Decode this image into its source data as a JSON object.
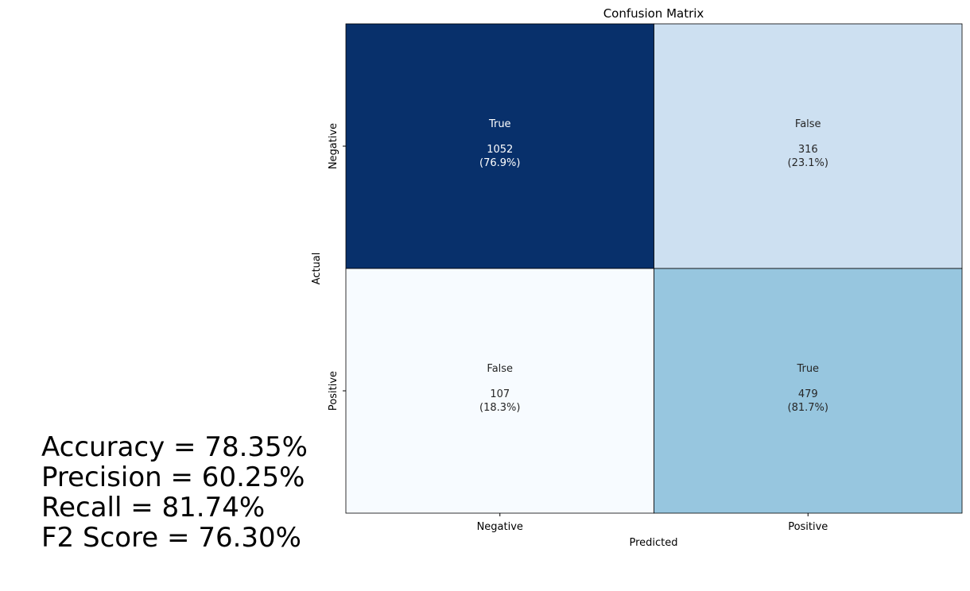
{
  "chart_data": {
    "type": "heatmap",
    "title": "Confusion Matrix",
    "xlabel": "Predicted",
    "ylabel": "Actual",
    "x_categories": [
      "Negative",
      "Positive"
    ],
    "y_categories": [
      "Negative",
      "Positive"
    ],
    "cells": [
      {
        "row": 0,
        "col": 0,
        "label": "True",
        "count": 1052,
        "percent": "(76.9%)",
        "fraction": 0.769,
        "color": "#08306b",
        "text_color": "#ffffff"
      },
      {
        "row": 0,
        "col": 1,
        "label": "False",
        "count": 316,
        "percent": "(23.1%)",
        "fraction": 0.231,
        "color": "#cde0f1",
        "text_color": "#262626"
      },
      {
        "row": 1,
        "col": 0,
        "label": "False",
        "count": 107,
        "percent": "(18.3%)",
        "fraction": 0.183,
        "color": "#f7fbff",
        "text_color": "#262626"
      },
      {
        "row": 1,
        "col": 1,
        "label": "True",
        "count": 479,
        "percent": "(81.7%)",
        "fraction": 0.817,
        "color": "#97c6df",
        "text_color": "#262626"
      }
    ],
    "grid": true,
    "colormap": "Blues"
  },
  "metrics": {
    "accuracy": "Accuracy = 78.35%",
    "precision": "Precision = 60.25%",
    "recall": "Recall = 81.74%",
    "f2": "F2 Score = 76.30%"
  }
}
